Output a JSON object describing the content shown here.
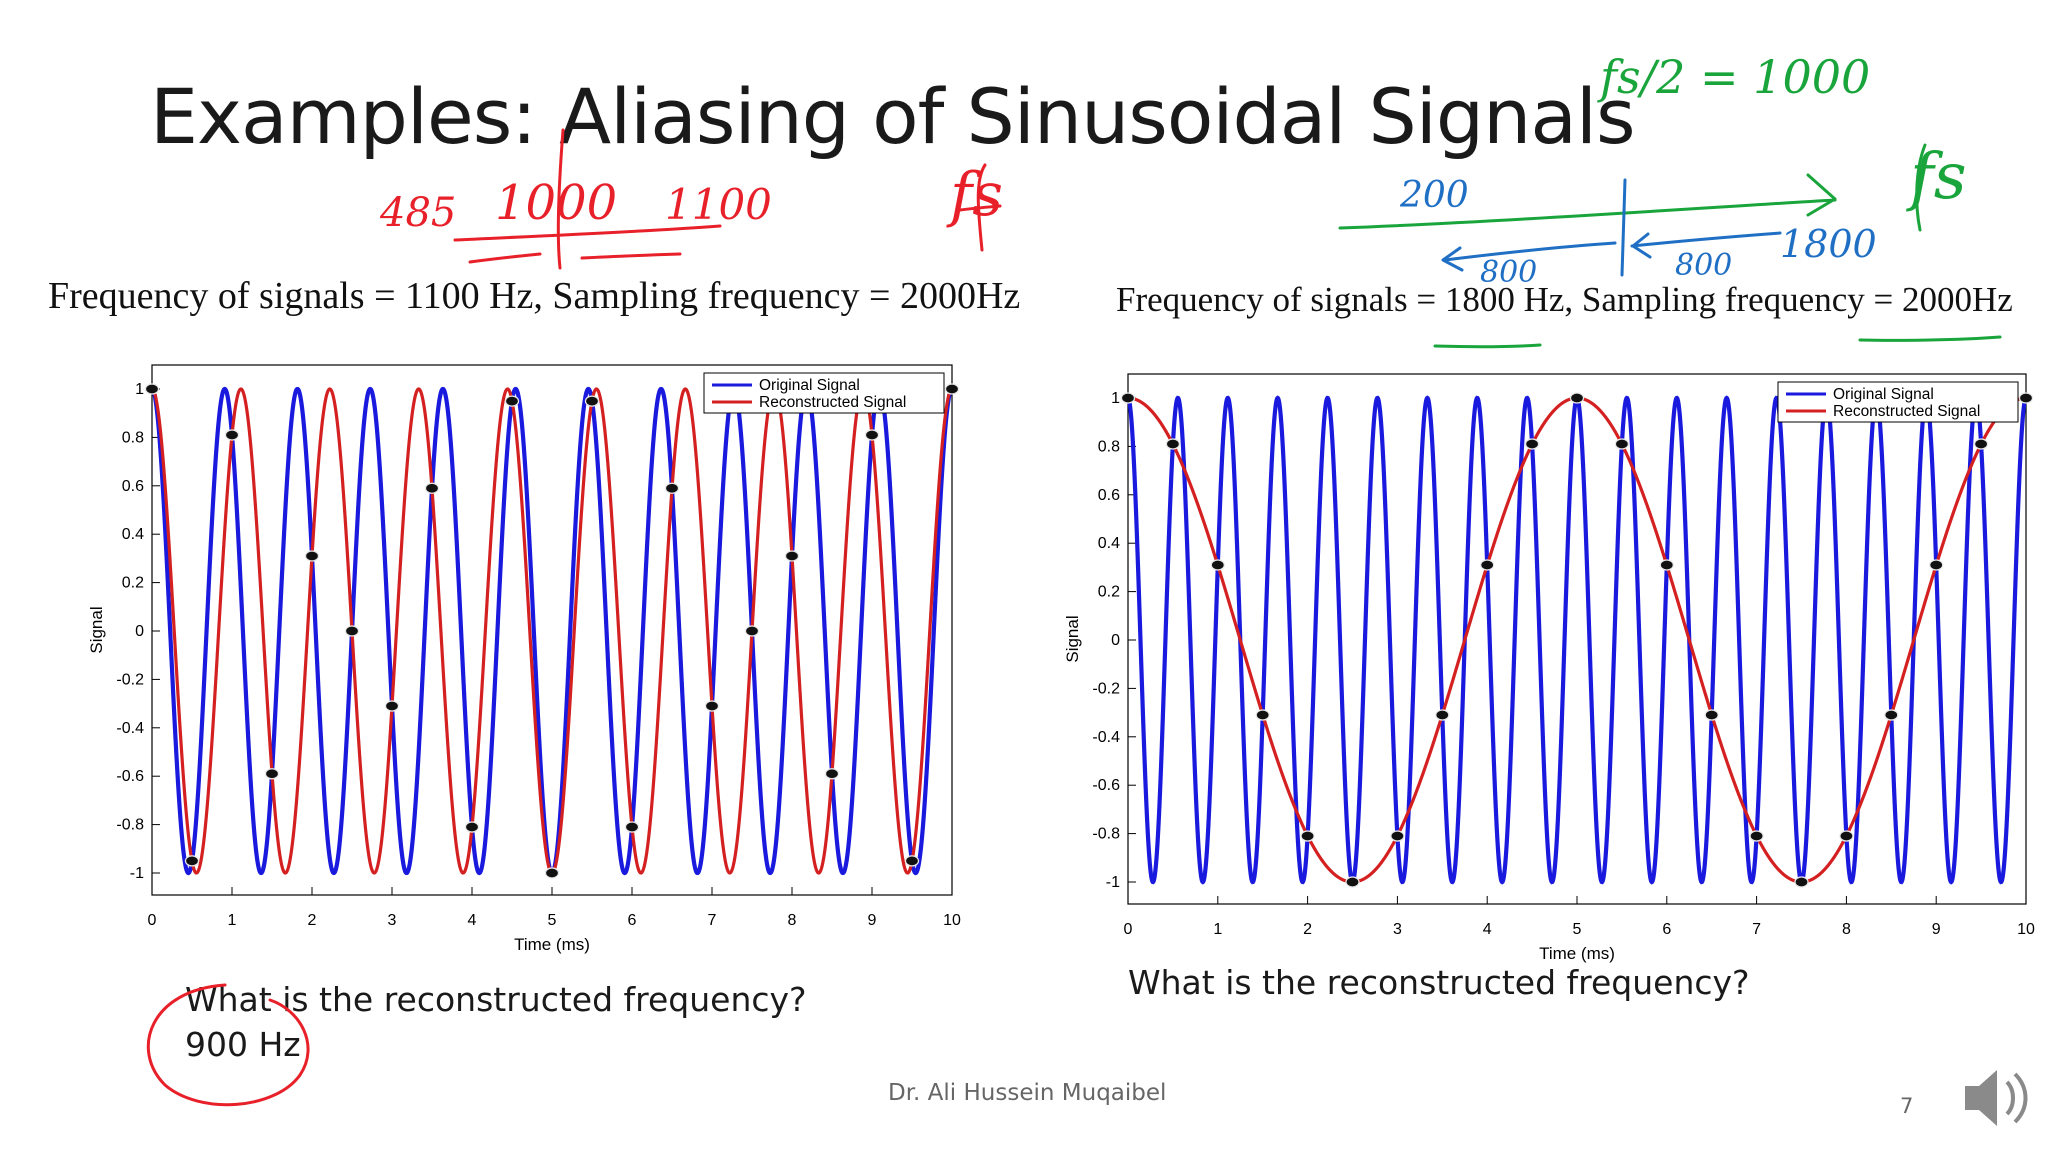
{
  "slide": {
    "title": "Examples: Aliasing of Sinusoidal Signals",
    "footer_author": "Dr. Ali Hussein Muqaibel",
    "page_number": "7"
  },
  "left_example": {
    "caption": "Frequency of signals = 1100 Hz, Sampling frequency = 2000Hz",
    "question": "What is the reconstructed frequency?",
    "answer": "900 Hz"
  },
  "right_example": {
    "caption": "Frequency of signals = 1800 Hz, Sampling frequency = 2000Hz",
    "question": "What is the reconstructed frequency?"
  },
  "annotations_left": {
    "numbers": [
      "485",
      "1000",
      "1100"
    ],
    "symbol": "fs"
  },
  "annotations_right": {
    "top": "fs/2 = 1000",
    "numbers": [
      "200",
      "800",
      "800",
      "1800"
    ],
    "symbol": "fs"
  },
  "colors": {
    "original": "#1a1adf",
    "reconstructed": "#d42020",
    "samples": "#111111",
    "ink_red": "#e8202a",
    "ink_green": "#1aa53c",
    "ink_blue": "#1f6fc4"
  },
  "chart_data": [
    {
      "type": "line",
      "xlabel": "Time (ms)",
      "ylabel": "Signal",
      "xlim": [
        0,
        10
      ],
      "ylim": [
        -1,
        1
      ],
      "xticks": [
        0,
        1,
        2,
        3,
        4,
        5,
        6,
        7,
        8,
        9,
        10
      ],
      "yticks": [
        1,
        0.8,
        0.6,
        0.4,
        0.2,
        0,
        -0.2,
        -0.4,
        -0.6,
        -0.8,
        -1
      ],
      "legend_position": "top-right",
      "series": [
        {
          "name": "Original Signal",
          "frequency_hz": 1100,
          "color": "#1a1adf"
        },
        {
          "name": "Reconstructed Signal",
          "frequency_hz": 900,
          "color": "#d42020"
        }
      ],
      "sample_rate_hz": 2000,
      "sample_times_ms": [
        0,
        0.5,
        1,
        1.5,
        2,
        2.5,
        3,
        3.5,
        4,
        4.5,
        5,
        5.5,
        6,
        6.5,
        7,
        7.5,
        8,
        8.5,
        9,
        9.5,
        10
      ],
      "sample_values": [
        1,
        -0.95,
        0.81,
        -0.59,
        0.31,
        0,
        -0.31,
        0.59,
        -0.81,
        0.95,
        -1,
        0.95,
        -0.81,
        0.59,
        -0.31,
        0,
        0.31,
        -0.59,
        0.81,
        -0.95,
        1
      ]
    },
    {
      "type": "line",
      "xlabel": "Time (ms)",
      "ylabel": "Signal",
      "xlim": [
        0,
        10
      ],
      "ylim": [
        -1,
        1
      ],
      "xticks": [
        0,
        1,
        2,
        3,
        4,
        5,
        6,
        7,
        8,
        9,
        10
      ],
      "yticks": [
        1,
        0.8,
        0.6,
        0.4,
        0.2,
        0,
        -0.2,
        -0.4,
        -0.6,
        -0.8,
        -1
      ],
      "legend_position": "top-right",
      "series": [
        {
          "name": "Original Signal",
          "frequency_hz": 1800,
          "color": "#1a1adf"
        },
        {
          "name": "Reconstructed Signal",
          "frequency_hz": 200,
          "color": "#d42020"
        }
      ],
      "sample_rate_hz": 2000,
      "sample_times_ms": [
        0,
        0.5,
        1,
        1.5,
        2,
        2.5,
        3,
        3.5,
        4,
        4.5,
        5,
        5.5,
        6,
        6.5,
        7,
        7.5,
        8,
        8.5,
        9,
        9.5,
        10
      ],
      "sample_values": [
        1,
        0.81,
        0.31,
        -0.31,
        -0.81,
        -1,
        -0.81,
        -0.31,
        0.31,
        0.81,
        1,
        0.81,
        0.31,
        -0.31,
        -0.81,
        -1,
        -0.81,
        -0.31,
        0.31,
        0.81,
        1
      ]
    }
  ]
}
